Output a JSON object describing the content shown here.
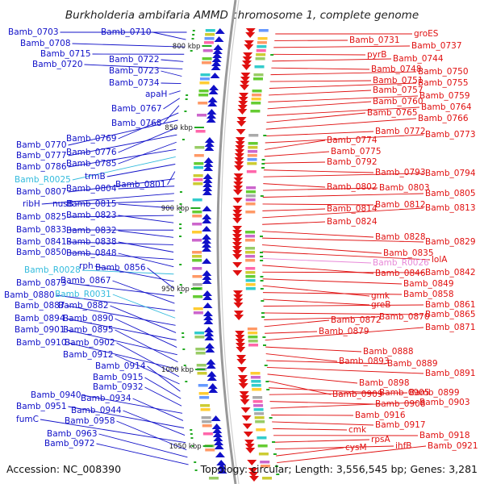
{
  "title": "Burkholderia ambifaria AMMD chromosome 1, complete genome",
  "accession_text": "Accession: NC_008390",
  "topology_text": "Topology: circular; Length: 3,556,545 bp; Genes: 3,281",
  "colors": {
    "forward_strand": "#1010c8",
    "reverse_strand": "#e01010",
    "rna": "#33bbdd",
    "pseudo": "#e888d8",
    "axis": "#888888",
    "tick": "#22aa22"
  },
  "kbp_markers": [
    "800 kbp",
    "850 kbp",
    "900 kbp",
    "950 kbp",
    "1000 kbp",
    "1050 kbp"
  ],
  "left_labels": [
    {
      "text": "Bamb_0703",
      "type": "gene"
    },
    {
      "text": "Bamb_0710",
      "type": "gene"
    },
    {
      "text": "Bamb_0708",
      "type": "gene"
    },
    {
      "text": "Bamb_0715",
      "type": "gene"
    },
    {
      "text": "Bamb_0722",
      "type": "gene"
    },
    {
      "text": "Bamb_0720",
      "type": "gene"
    },
    {
      "text": "Bamb_0723",
      "type": "gene"
    },
    {
      "text": "Bamb_0734",
      "type": "gene"
    },
    {
      "text": "apaH",
      "type": "gene"
    },
    {
      "text": "Bamb_0767",
      "type": "gene"
    },
    {
      "text": "Bamb_0768",
      "type": "gene"
    },
    {
      "text": "Bamb_0769",
      "type": "gene"
    },
    {
      "text": "Bamb_0770",
      "type": "gene"
    },
    {
      "text": "Bamb_0776",
      "type": "gene"
    },
    {
      "text": "Bamb_0777",
      "type": "gene"
    },
    {
      "text": "Bamb_0785",
      "type": "gene"
    },
    {
      "text": "Bamb_0786",
      "type": "gene"
    },
    {
      "text": "Bamb_R0025",
      "type": "rna"
    },
    {
      "text": "trmB",
      "type": "gene"
    },
    {
      "text": "Bamb_0801",
      "type": "gene"
    },
    {
      "text": "Bamb_0807",
      "type": "gene"
    },
    {
      "text": "Bamb_0804",
      "type": "gene"
    },
    {
      "text": "ribH",
      "type": "gene"
    },
    {
      "text": "nusB",
      "type": "gene"
    },
    {
      "text": "Bamb_0815",
      "type": "gene"
    },
    {
      "text": "Bamb_0825",
      "type": "gene"
    },
    {
      "text": "Bamb_0823",
      "type": "gene"
    },
    {
      "text": "Bamb_0833",
      "type": "gene"
    },
    {
      "text": "Bamb_0832",
      "type": "gene"
    },
    {
      "text": "Bamb_0841",
      "type": "gene"
    },
    {
      "text": "Bamb_0838",
      "type": "gene"
    },
    {
      "text": "Bamb_0850",
      "type": "gene"
    },
    {
      "text": "Bamb_0848",
      "type": "gene"
    },
    {
      "text": "Bamb_R0028",
      "type": "rna"
    },
    {
      "text": "rph",
      "type": "gene"
    },
    {
      "text": "Bamb_0856",
      "type": "gene"
    },
    {
      "text": "Bamb_0873",
      "type": "gene"
    },
    {
      "text": "Bamb_0867",
      "type": "gene"
    },
    {
      "text": "Bamb_0880",
      "type": "gene"
    },
    {
      "text": "Bamb_R0031",
      "type": "rna"
    },
    {
      "text": "Bamb_0887",
      "type": "gene"
    },
    {
      "text": "Bamb_0882",
      "type": "gene"
    },
    {
      "text": "Bamb_0894",
      "type": "gene"
    },
    {
      "text": "Bamb_0890",
      "type": "gene"
    },
    {
      "text": "Bamb_0901",
      "type": "gene"
    },
    {
      "text": "Bamb_0895",
      "type": "gene"
    },
    {
      "text": "Bamb_0910",
      "type": "gene"
    },
    {
      "text": "Bamb_0902",
      "type": "gene"
    },
    {
      "text": "Bamb_0912",
      "type": "gene"
    },
    {
      "text": "Bamb_0914",
      "type": "gene"
    },
    {
      "text": "Bamb_0915",
      "type": "gene"
    },
    {
      "text": "Bamb_0932",
      "type": "gene"
    },
    {
      "text": "Bamb_0940",
      "type": "gene"
    },
    {
      "text": "Bamb_0934",
      "type": "gene"
    },
    {
      "text": "Bamb_0951",
      "type": "gene"
    },
    {
      "text": "Bamb_0944",
      "type": "gene"
    },
    {
      "text": "fumC",
      "type": "gene"
    },
    {
      "text": "Bamb_0958",
      "type": "gene"
    },
    {
      "text": "Bamb_0963",
      "type": "gene"
    },
    {
      "text": "Bamb_0972",
      "type": "gene"
    }
  ],
  "right_labels": [
    {
      "text": "groES",
      "type": "gene"
    },
    {
      "text": "Bamb_0731",
      "type": "gene"
    },
    {
      "text": "Bamb_0737",
      "type": "gene"
    },
    {
      "text": "pyrB",
      "type": "gene"
    },
    {
      "text": "Bamb_0744",
      "type": "gene"
    },
    {
      "text": "Bamb_0748",
      "type": "gene"
    },
    {
      "text": "Bamb_0750",
      "type": "gene"
    },
    {
      "text": "Bamb_0751",
      "type": "gene"
    },
    {
      "text": "Bamb_0755",
      "type": "gene"
    },
    {
      "text": "Bamb_0757",
      "type": "gene"
    },
    {
      "text": "Bamb_0759",
      "type": "gene"
    },
    {
      "text": "Bamb_0760",
      "type": "gene"
    },
    {
      "text": "Bamb_0764",
      "type": "gene"
    },
    {
      "text": "Bamb_0765",
      "type": "gene"
    },
    {
      "text": "Bamb_0766",
      "type": "gene"
    },
    {
      "text": "Bamb_0772",
      "type": "gene"
    },
    {
      "text": "Bamb_0773",
      "type": "gene"
    },
    {
      "text": "Bamb_0774",
      "type": "gene"
    },
    {
      "text": "Bamb_0775",
      "type": "gene"
    },
    {
      "text": "Bamb_0792",
      "type": "gene"
    },
    {
      "text": "Bamb_0793",
      "type": "gene"
    },
    {
      "text": "Bamb_0794",
      "type": "gene"
    },
    {
      "text": "Bamb_0802",
      "type": "gene"
    },
    {
      "text": "Bamb_0803",
      "type": "gene"
    },
    {
      "text": "Bamb_0805",
      "type": "gene"
    },
    {
      "text": "Bamb_0812",
      "type": "gene"
    },
    {
      "text": "Bamb_0814",
      "type": "gene"
    },
    {
      "text": "Bamb_0813",
      "type": "gene"
    },
    {
      "text": "Bamb_0824",
      "type": "gene"
    },
    {
      "text": "Bamb_0828",
      "type": "gene"
    },
    {
      "text": "Bamb_0829",
      "type": "gene"
    },
    {
      "text": "Bamb_0835",
      "type": "gene"
    },
    {
      "text": "lolA",
      "type": "gene"
    },
    {
      "text": "Bamb_R0026",
      "type": "pseudo"
    },
    {
      "text": "Bamb_0846",
      "type": "gene"
    },
    {
      "text": "Bamb_0842",
      "type": "gene"
    },
    {
      "text": "Bamb_0849",
      "type": "gene"
    },
    {
      "text": "gmk",
      "type": "gene"
    },
    {
      "text": "Bamb_0858",
      "type": "gene"
    },
    {
      "text": "greB",
      "type": "gene"
    },
    {
      "text": "Bamb_0861",
      "type": "gene"
    },
    {
      "text": "Bamb_0865",
      "type": "gene"
    },
    {
      "text": "Bamb_0870",
      "type": "gene"
    },
    {
      "text": "Bamb_0872",
      "type": "gene"
    },
    {
      "text": "Bamb_0879",
      "type": "gene"
    },
    {
      "text": "Bamb_0871",
      "type": "gene"
    },
    {
      "text": "Bamb_0888",
      "type": "gene"
    },
    {
      "text": "Bamb_0893",
      "type": "gene"
    },
    {
      "text": "Bamb_0889",
      "type": "gene"
    },
    {
      "text": "Bamb_0891",
      "type": "gene"
    },
    {
      "text": "Bamb_0898",
      "type": "gene"
    },
    {
      "text": "Bamb_0909",
      "type": "gene"
    },
    {
      "text": "Bamb_0905",
      "type": "gene"
    },
    {
      "text": "Bamb_0899",
      "type": "gene"
    },
    {
      "text": "Bamb_0908",
      "type": "gene"
    },
    {
      "text": "Bamb_0903",
      "type": "gene"
    },
    {
      "text": "Bamb_0916",
      "type": "gene"
    },
    {
      "text": "Bamb_0917",
      "type": "gene"
    },
    {
      "text": "cmk",
      "type": "gene"
    },
    {
      "text": "Bamb_0918",
      "type": "gene"
    },
    {
      "text": "rpsA",
      "type": "gene"
    },
    {
      "text": "ihfB",
      "type": "gene"
    },
    {
      "text": "cysM",
      "type": "gene"
    },
    {
      "text": "Bamb_0921",
      "type": "gene"
    }
  ]
}
